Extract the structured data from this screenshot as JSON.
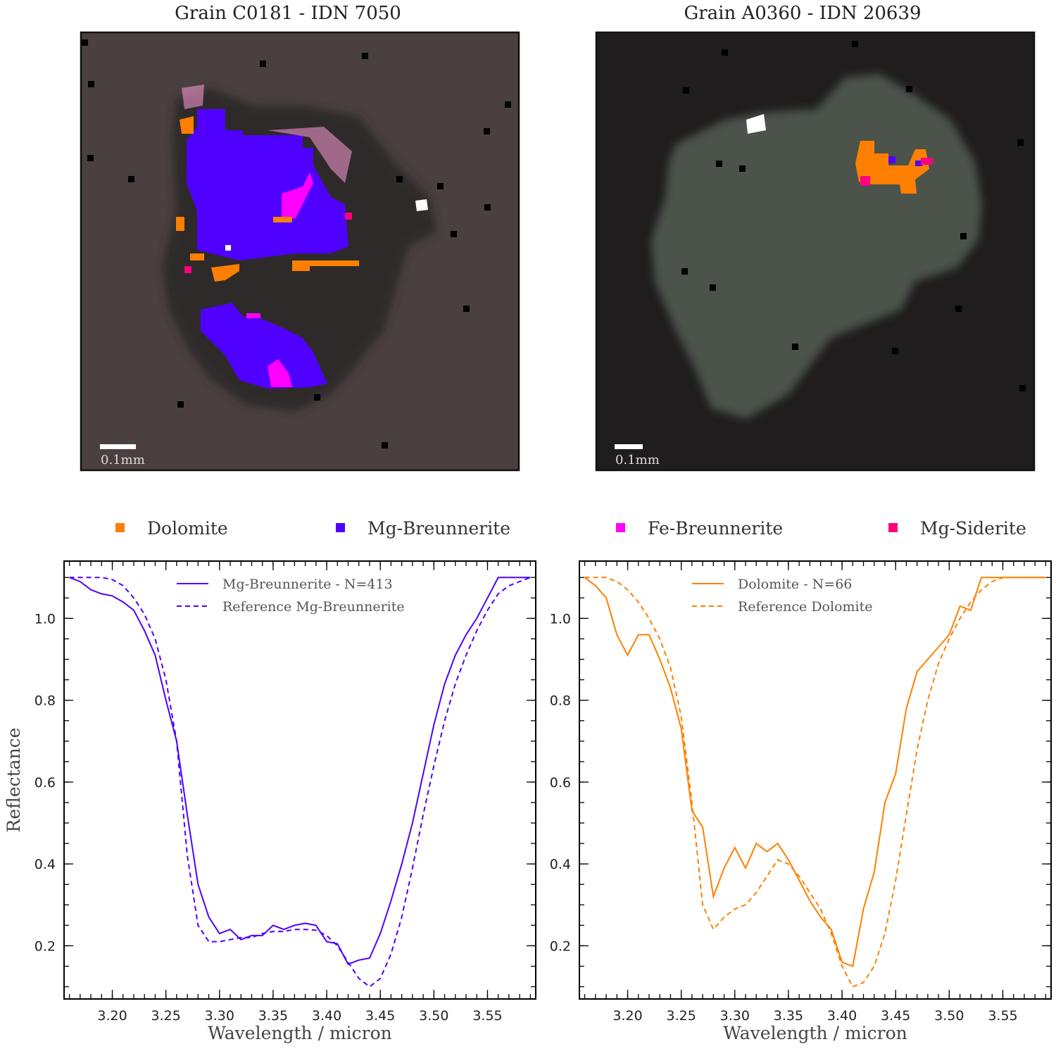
{
  "images": [
    {
      "title": "Grain C0181 - IDN 7050",
      "scalebar_label": "0.1mm",
      "background": "#4a403f",
      "grain_color": "#2e2a2a"
    },
    {
      "title": "Grain A0360 - IDN 20639",
      "scalebar_label": "0.1mm",
      "background": "#1f1d1d",
      "grain_color": "#4b534b"
    }
  ],
  "legend": [
    {
      "label": "Dolomite",
      "color": "#ff8000"
    },
    {
      "label": "Mg-Breunnerite",
      "color": "#5000ff"
    },
    {
      "label": "Fe-Breunnerite",
      "color": "#ff00ff"
    },
    {
      "label": "Mg-Siderite",
      "color": "#ff007f"
    }
  ],
  "chart_data": [
    {
      "type": "line",
      "xlabel": "Wavelength / micron",
      "ylabel": "Reflectance",
      "xlim": [
        3.155,
        3.595
      ],
      "ylim": [
        0.07,
        1.14
      ],
      "xticks": [
        3.2,
        3.25,
        3.3,
        3.35,
        3.4,
        3.45,
        3.5,
        3.55
      ],
      "xtick_labels": [
        "3.20",
        "3.25",
        "3.30",
        "3.35",
        "3.40",
        "3.45",
        "3.50",
        "3.55"
      ],
      "yticks": [
        0.2,
        0.4,
        0.6,
        0.8,
        1.0
      ],
      "ytick_labels": [
        "0.2",
        "0.4",
        "0.6",
        "0.8",
        "1.0"
      ],
      "legend_position": "top-center",
      "series": [
        {
          "name": "Mg-Breunnerite - N=413",
          "color": "#5000ff",
          "style": "solid",
          "x": [
            3.16,
            3.17,
            3.18,
            3.19,
            3.2,
            3.21,
            3.22,
            3.23,
            3.24,
            3.25,
            3.26,
            3.27,
            3.28,
            3.29,
            3.3,
            3.31,
            3.32,
            3.33,
            3.34,
            3.35,
            3.36,
            3.37,
            3.38,
            3.39,
            3.4,
            3.41,
            3.42,
            3.43,
            3.44,
            3.45,
            3.46,
            3.47,
            3.48,
            3.49,
            3.5,
            3.51,
            3.52,
            3.53,
            3.54,
            3.55,
            3.56,
            3.57,
            3.58,
            3.59
          ],
          "y": [
            1.1,
            1.09,
            1.07,
            1.06,
            1.055,
            1.04,
            1.02,
            0.97,
            0.91,
            0.8,
            0.7,
            0.52,
            0.35,
            0.27,
            0.23,
            0.24,
            0.215,
            0.225,
            0.225,
            0.25,
            0.24,
            0.25,
            0.255,
            0.25,
            0.21,
            0.205,
            0.155,
            0.165,
            0.17,
            0.23,
            0.31,
            0.4,
            0.5,
            0.62,
            0.74,
            0.84,
            0.91,
            0.96,
            1.0,
            1.05,
            1.1,
            1.1,
            1.1,
            1.1
          ]
        },
        {
          "name": "Reference Mg-Breunnerite",
          "color": "#5000ff",
          "style": "dashed",
          "x": [
            3.16,
            3.17,
            3.18,
            3.19,
            3.2,
            3.21,
            3.22,
            3.23,
            3.24,
            3.25,
            3.26,
            3.27,
            3.28,
            3.29,
            3.3,
            3.31,
            3.32,
            3.33,
            3.34,
            3.35,
            3.36,
            3.37,
            3.38,
            3.39,
            3.4,
            3.41,
            3.42,
            3.43,
            3.44,
            3.45,
            3.46,
            3.47,
            3.48,
            3.49,
            3.5,
            3.51,
            3.52,
            3.53,
            3.54,
            3.55,
            3.56,
            3.57,
            3.58,
            3.59
          ],
          "y": [
            1.1,
            1.1,
            1.1,
            1.1,
            1.095,
            1.08,
            1.05,
            1.01,
            0.95,
            0.85,
            0.7,
            0.42,
            0.25,
            0.21,
            0.21,
            0.215,
            0.22,
            0.22,
            0.23,
            0.235,
            0.235,
            0.24,
            0.24,
            0.238,
            0.225,
            0.2,
            0.16,
            0.12,
            0.1,
            0.12,
            0.18,
            0.27,
            0.39,
            0.52,
            0.64,
            0.75,
            0.84,
            0.91,
            0.97,
            1.02,
            1.06,
            1.08,
            1.09,
            1.1
          ]
        }
      ]
    },
    {
      "type": "line",
      "xlabel": "Wavelength / micron",
      "ylabel": "",
      "xlim": [
        3.155,
        3.595
      ],
      "ylim": [
        0.07,
        1.14
      ],
      "xticks": [
        3.2,
        3.25,
        3.3,
        3.35,
        3.4,
        3.45,
        3.5,
        3.55
      ],
      "xtick_labels": [
        "3.20",
        "3.25",
        "3.30",
        "3.35",
        "3.40",
        "3.45",
        "3.50",
        "3.55"
      ],
      "yticks": [
        0.2,
        0.4,
        0.6,
        0.8,
        1.0
      ],
      "ytick_labels": [
        "0.2",
        "0.4",
        "0.6",
        "0.8",
        "1.0"
      ],
      "legend_position": "top-center",
      "series": [
        {
          "name": "Dolomite - N=66",
          "color": "#ff8000",
          "style": "solid",
          "x": [
            3.16,
            3.17,
            3.18,
            3.19,
            3.2,
            3.21,
            3.22,
            3.23,
            3.24,
            3.25,
            3.26,
            3.27,
            3.28,
            3.29,
            3.3,
            3.31,
            3.32,
            3.33,
            3.34,
            3.35,
            3.36,
            3.37,
            3.38,
            3.39,
            3.4,
            3.41,
            3.42,
            3.43,
            3.44,
            3.45,
            3.46,
            3.47,
            3.48,
            3.49,
            3.5,
            3.51,
            3.52,
            3.53,
            3.54,
            3.55,
            3.56,
            3.57,
            3.58,
            3.59
          ],
          "y": [
            1.1,
            1.08,
            1.05,
            0.96,
            0.91,
            0.96,
            0.96,
            0.9,
            0.83,
            0.73,
            0.53,
            0.49,
            0.32,
            0.39,
            0.44,
            0.39,
            0.45,
            0.43,
            0.45,
            0.41,
            0.36,
            0.31,
            0.27,
            0.24,
            0.16,
            0.15,
            0.29,
            0.38,
            0.55,
            0.62,
            0.78,
            0.87,
            0.9,
            0.93,
            0.96,
            1.03,
            1.02,
            1.1,
            1.1,
            1.1,
            1.1,
            1.1,
            1.1,
            1.1
          ]
        },
        {
          "name": "Reference Dolomite",
          "color": "#ff8000",
          "style": "dashed",
          "x": [
            3.16,
            3.17,
            3.18,
            3.19,
            3.2,
            3.21,
            3.22,
            3.23,
            3.24,
            3.25,
            3.26,
            3.27,
            3.28,
            3.29,
            3.3,
            3.31,
            3.32,
            3.33,
            3.34,
            3.35,
            3.36,
            3.37,
            3.38,
            3.39,
            3.4,
            3.41,
            3.42,
            3.43,
            3.44,
            3.45,
            3.46,
            3.47,
            3.48,
            3.49,
            3.5,
            3.51,
            3.52,
            3.53,
            3.54,
            3.55,
            3.56,
            3.57,
            3.58,
            3.59
          ],
          "y": [
            1.1,
            1.1,
            1.1,
            1.09,
            1.07,
            1.04,
            1.0,
            0.95,
            0.88,
            0.76,
            0.55,
            0.3,
            0.24,
            0.27,
            0.29,
            0.3,
            0.33,
            0.37,
            0.41,
            0.4,
            0.37,
            0.33,
            0.29,
            0.23,
            0.15,
            0.1,
            0.11,
            0.15,
            0.23,
            0.36,
            0.52,
            0.68,
            0.8,
            0.89,
            0.95,
            1.0,
            1.04,
            1.07,
            1.09,
            1.1,
            1.1,
            1.1,
            1.1,
            1.1
          ]
        }
      ]
    }
  ]
}
